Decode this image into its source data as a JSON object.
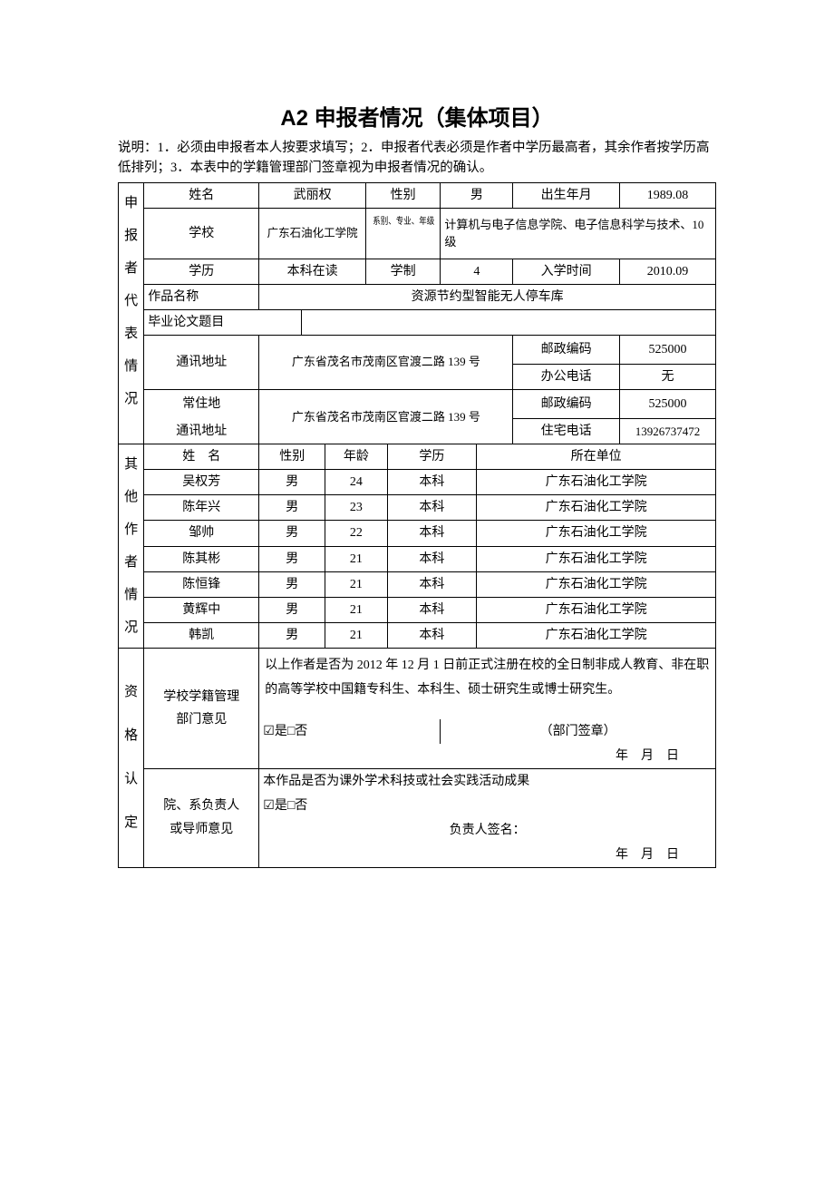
{
  "title": "A2 申报者情况（集体项目）",
  "instructions": "说明：1．必须由申报者本人按要求填写；2．申报者代表必须是作者中学历最高者，其余作者按学历高低排列；3．本表中的学籍管理部门签章视为申报者情况的确认。",
  "section_labels": {
    "applicant_rep": "申报者代表情况",
    "other_authors": "其他作者情况",
    "qualification": "资格认定"
  },
  "applicant": {
    "labels": {
      "name": "姓名",
      "gender": "性别",
      "birth": "出生年月",
      "school": "学校",
      "dept": "系别、专业、年级",
      "education": "学历",
      "system": "学制",
      "enroll": "入学时间",
      "work_title": "作品名称",
      "thesis": "毕业论文题目",
      "mail_addr": "通讯地址",
      "postal": "邮政编码",
      "office_phone": "办公电话",
      "perm_addr1": "常住地",
      "perm_addr2": "通讯地址",
      "home_phone": "住宅电话"
    },
    "name": "武丽权",
    "gender": "男",
    "birth": "1989.08",
    "school": "广东石油化工学院",
    "dept": "计算机与电子信息学院、电子信息科学与技术、10 级",
    "education": "本科在读",
    "system": "4",
    "enroll": "2010.09",
    "work_title": "资源节约型智能无人停车库",
    "thesis": "",
    "mail_addr": "广东省茂名市茂南区官渡二路 139 号",
    "postal1": "525000",
    "office_phone": "无",
    "perm_addr": "广东省茂名市茂南区官渡二路 139 号",
    "postal2": "525000",
    "home_phone": "13926737472"
  },
  "others": {
    "headers": {
      "name": "姓　名",
      "gender": "性别",
      "age": "年龄",
      "education": "学历",
      "unit": "所在单位"
    },
    "rows": [
      {
        "name": "吴权芳",
        "gender": "男",
        "age": "24",
        "education": "本科",
        "unit": "广东石油化工学院"
      },
      {
        "name": "陈年兴",
        "gender": "男",
        "age": "23",
        "education": "本科",
        "unit": "广东石油化工学院"
      },
      {
        "name": "邹帅",
        "gender": "男",
        "age": "22",
        "education": "本科",
        "unit": "广东石油化工学院"
      },
      {
        "name": "陈其彬",
        "gender": "男",
        "age": "21",
        "education": "本科",
        "unit": "广东石油化工学院"
      },
      {
        "name": "陈恒锋",
        "gender": "男",
        "age": "21",
        "education": "本科",
        "unit": "广东石油化工学院"
      },
      {
        "name": "黄辉中",
        "gender": "男",
        "age": "21",
        "education": "本科",
        "unit": "广东石油化工学院"
      },
      {
        "name": "韩凯",
        "gender": "男",
        "age": "21",
        "education": "本科",
        "unit": "广东石油化工学院"
      }
    ]
  },
  "qualification": {
    "school_opinion_label1": "学校学籍管理",
    "school_opinion_label2": "部门意见",
    "school_text": "以上作者是否为 2012 年 12 月 1 日前正式注册在校的全日制非成人教育、非在职的高等学校中国籍专科生、本科生、硕士研究生或博士研究生。",
    "yes_no": "☑是□否",
    "dept_seal": "（部门签章）",
    "date_line": "年　月　日",
    "dept_opinion_label1": "院、系负责人",
    "dept_opinion_label2": "或导师意见",
    "dept_text": "本作品是否为课外学术科技或社会实践活动成果",
    "signer": "负责人签名："
  }
}
